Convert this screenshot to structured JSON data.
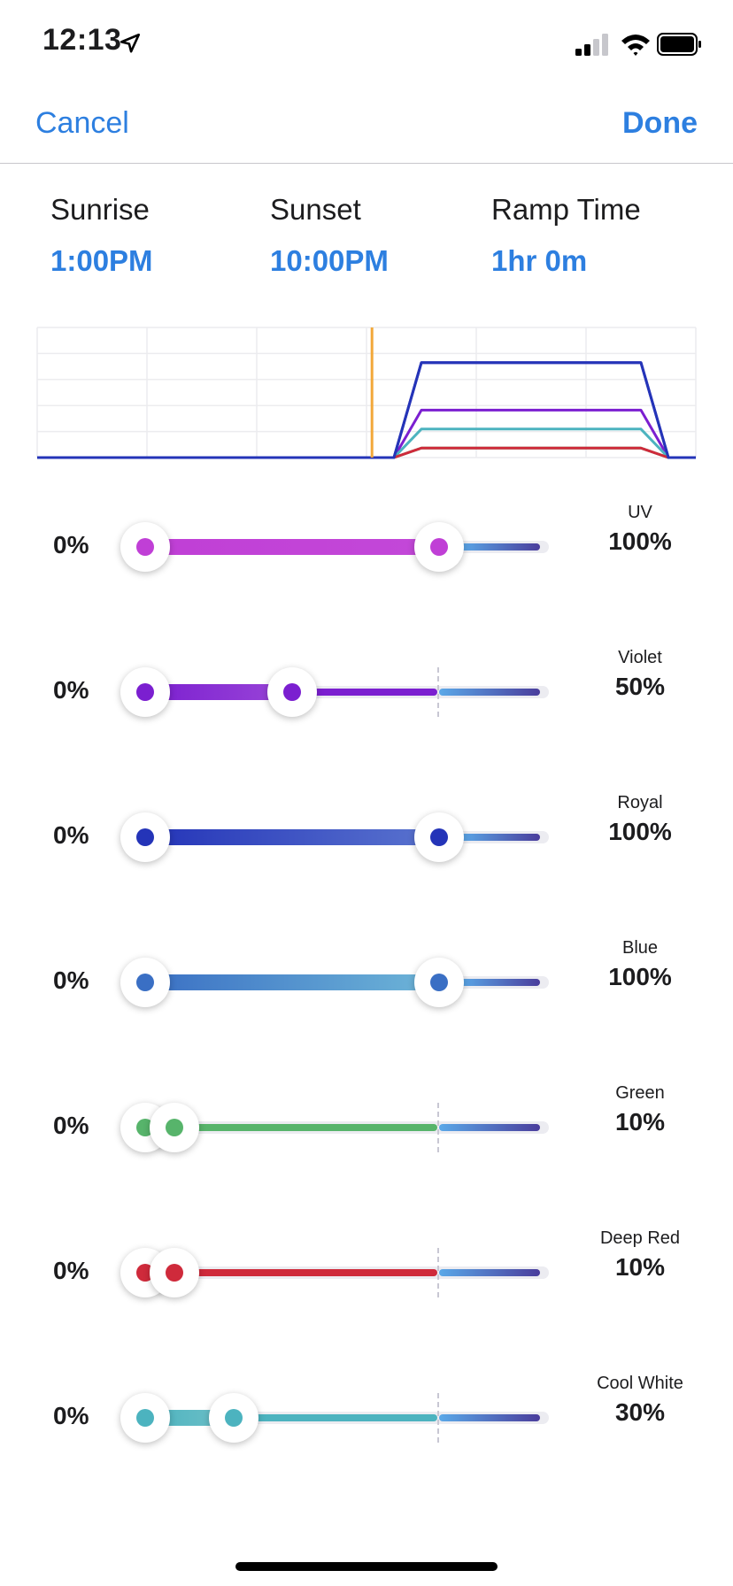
{
  "status": {
    "time": "12:13"
  },
  "nav": {
    "cancel": "Cancel",
    "done": "Done"
  },
  "schedule": {
    "sunrise_label": "Sunrise",
    "sunrise_value": "1:00PM",
    "sunset_label": "Sunset",
    "sunset_value": "10:00PM",
    "ramp_label": "Ramp Time",
    "ramp_value": "1hr 0m"
  },
  "chart_data": {
    "type": "line",
    "xlim": [
      0,
      24
    ],
    "ylim": [
      0,
      100
    ],
    "grid": true,
    "current_time_hour": 12.2,
    "ramp_start_hour": 13,
    "ramp_end_hour": 14,
    "ramp_down_start_hour": 22,
    "ramp_down_end_hour": 23,
    "series": [
      {
        "color": "#c03fd6",
        "peak": 100
      },
      {
        "color": "#7b1fd0",
        "peak": 50
      },
      {
        "color": "#4cb3bf",
        "peak": 30
      },
      {
        "color": "#57b46b",
        "peak": 10
      },
      {
        "color": "#cf2a3b",
        "peak": 10
      },
      {
        "color": "#3a6fc4",
        "peak": 100
      },
      {
        "color": "#2434b8",
        "peak": 100
      }
    ]
  },
  "channels": [
    {
      "name": "UV",
      "min": "0%",
      "value": "100%",
      "level": 100,
      "color": "#c03fd6",
      "fill_from": "#c03fd6",
      "fill_to": "#c348d8"
    },
    {
      "name": "Violet",
      "min": "0%",
      "value": "50%",
      "level": 50,
      "color": "#7b1fd0",
      "fill_from": "#7b1fd0",
      "fill_to": "#9a46d8"
    },
    {
      "name": "Royal",
      "min": "0%",
      "value": "100%",
      "level": 100,
      "color": "#2434b8",
      "fill_from": "#2434b8",
      "fill_to": "#5a74cf"
    },
    {
      "name": "Blue",
      "min": "0%",
      "value": "100%",
      "level": 100,
      "color": "#3a6fc4",
      "fill_from": "#3a6fc4",
      "fill_to": "#6eb6d8"
    },
    {
      "name": "Green",
      "min": "0%",
      "value": "10%",
      "level": 10,
      "color": "#57b46b",
      "fill_from": "#57b46b",
      "fill_to": "#8fd0a0"
    },
    {
      "name": "Deep Red",
      "min": "0%",
      "value": "10%",
      "level": 10,
      "color": "#cf2a3b",
      "fill_from": "#cf2a3b",
      "fill_to": "#e0a08a"
    },
    {
      "name": "Cool White",
      "min": "0%",
      "value": "30%",
      "level": 30,
      "color": "#4cb3bf",
      "fill_from": "#4cb3bf",
      "fill_to": "#6fc0c8"
    }
  ]
}
